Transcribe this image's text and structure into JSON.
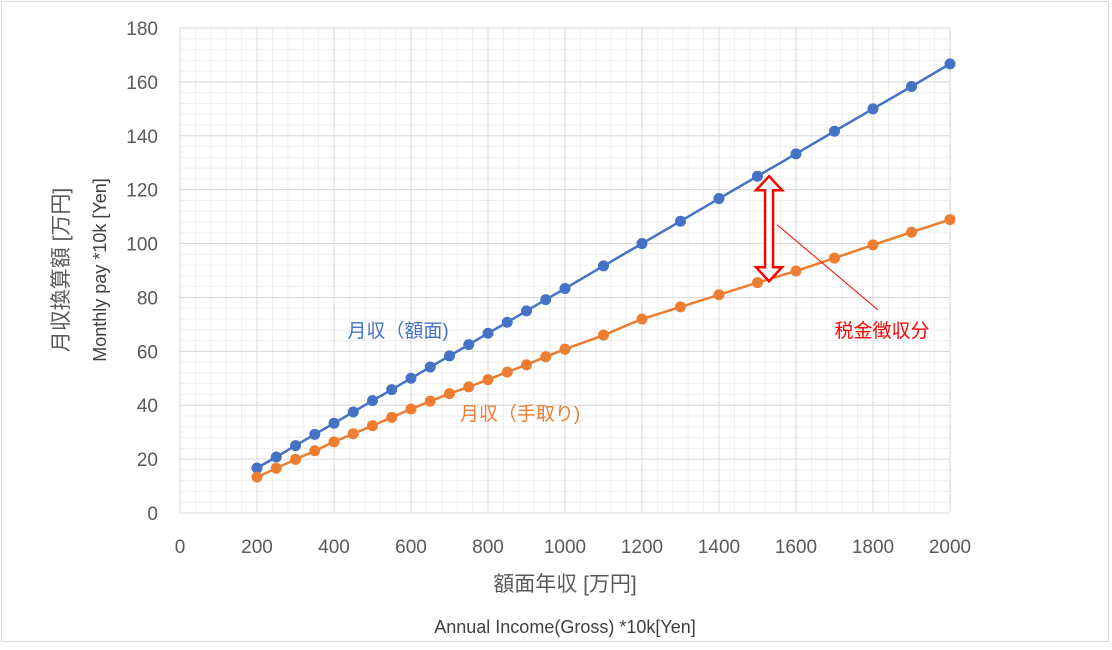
{
  "chart_data": {
    "type": "line",
    "xlim": [
      0,
      2000
    ],
    "ylim": [
      0,
      180
    ],
    "x_ticks": [
      0,
      200,
      400,
      600,
      800,
      1000,
      1200,
      1400,
      1600,
      1800,
      2000
    ],
    "y_ticks": [
      0,
      20,
      40,
      60,
      80,
      100,
      120,
      140,
      160,
      180
    ],
    "grid": true,
    "xlabel": "額面年収 [万円]",
    "xlabel_sub": "Annual Income(Gross) *10k[Yen]",
    "ylabel_line1": "月収換算額 [万円]",
    "ylabel_line2": "Monthly pay *10k [Yen]",
    "x": [
      200,
      250,
      300,
      350,
      400,
      450,
      500,
      550,
      600,
      650,
      700,
      750,
      800,
      850,
      900,
      950,
      1000,
      1100,
      1200,
      1300,
      1400,
      1500,
      1600,
      1700,
      1800,
      1900,
      2000
    ],
    "series": [
      {
        "name": "月収（額面)",
        "color": "#4472c4",
        "values": [
          16.7,
          20.8,
          25.0,
          29.2,
          33.3,
          37.5,
          41.7,
          45.8,
          50.0,
          54.2,
          58.3,
          62.5,
          66.7,
          70.8,
          75.0,
          79.2,
          83.3,
          91.7,
          100.0,
          108.3,
          116.7,
          125.0,
          133.3,
          141.7,
          150.0,
          158.3,
          166.7
        ]
      },
      {
        "name": "月収（手取り)",
        "color": "#ed7d31",
        "values": [
          13.3,
          16.6,
          19.9,
          23.1,
          26.4,
          29.4,
          32.4,
          35.5,
          38.6,
          41.5,
          44.3,
          46.8,
          49.5,
          52.3,
          55.0,
          58.0,
          60.8,
          66.0,
          72.0,
          76.5,
          81.0,
          85.5,
          89.8,
          94.6,
          99.5,
          104.2,
          108.9
        ]
      }
    ],
    "annotation": {
      "text": "税金徴収分",
      "color": "#ff0000",
      "arrow_x": 1530,
      "arrow_from": 125,
      "arrow_to": 86
    }
  }
}
